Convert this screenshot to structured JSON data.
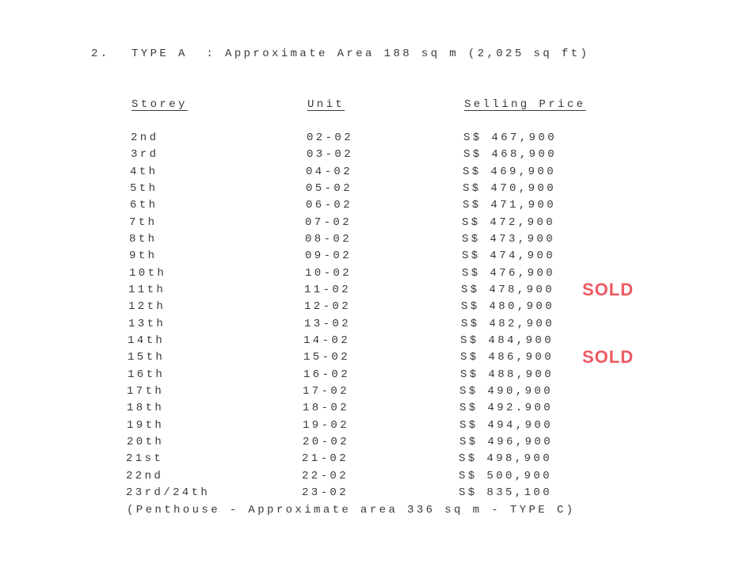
{
  "heading": {
    "number": "2.",
    "title": "TYPE A  : Approximate Area 188 sq m (2,025 sq ft)"
  },
  "columns": {
    "storey": "Storey",
    "unit": "Unit",
    "price": "Selling Price"
  },
  "rows": [
    {
      "storey": "2nd",
      "unit": "02-02",
      "price": "S$ 467,900"
    },
    {
      "storey": "3rd",
      "unit": "03-02",
      "price": "S$ 468,900"
    },
    {
      "storey": "4th",
      "unit": "04-02",
      "price": "S$ 469,900"
    },
    {
      "storey": "5th",
      "unit": "05-02",
      "price": "S$ 470,900"
    },
    {
      "storey": "6th",
      "unit": "06-02",
      "price": "S$ 471,900"
    },
    {
      "storey": "7th",
      "unit": "07-02",
      "price": "S$ 472,900"
    },
    {
      "storey": "8th",
      "unit": "08-02",
      "price": "S$ 473,900"
    },
    {
      "storey": "9th",
      "unit": "09-02",
      "price": "S$ 474,900"
    },
    {
      "storey": "10th",
      "unit": "10-02",
      "price": "S$ 476,900"
    },
    {
      "storey": "11th",
      "unit": "11-02",
      "price": "S$ 478,900",
      "stamp": "SOLD"
    },
    {
      "storey": "12th",
      "unit": "12-02",
      "price": "S$ 480,900"
    },
    {
      "storey": "13th",
      "unit": "13-02",
      "price": "S$ 482,900"
    },
    {
      "storey": "14th",
      "unit": "14-02",
      "price": "S$ 484,900"
    },
    {
      "storey": "15th",
      "unit": "15-02",
      "price": "S$ 486,900",
      "stamp": "SOLD"
    },
    {
      "storey": "16th",
      "unit": "16-02",
      "price": "S$ 488,900"
    },
    {
      "storey": "17th",
      "unit": "17-02",
      "price": "S$ 490,900"
    },
    {
      "storey": "18th",
      "unit": "18-02",
      "price": "S$ 492.900"
    },
    {
      "storey": "19th",
      "unit": "19-02",
      "price": "S$ 494,900"
    },
    {
      "storey": "20th",
      "unit": "20-02",
      "price": "S$ 496,900"
    },
    {
      "storey": "21st",
      "unit": "21-02",
      "price": "S$ 498,900"
    },
    {
      "storey": "22nd",
      "unit": "22-02",
      "price": "S$ 500,900"
    },
    {
      "storey": "23rd/24th",
      "unit": "23-02",
      "price": "S$ 835,100"
    }
  ],
  "footnote": "(Penthouse - Approximate area 336 sq m - TYPE C)",
  "colors": {
    "stamp": "#eb3c46",
    "text": "#3a3a3a"
  }
}
